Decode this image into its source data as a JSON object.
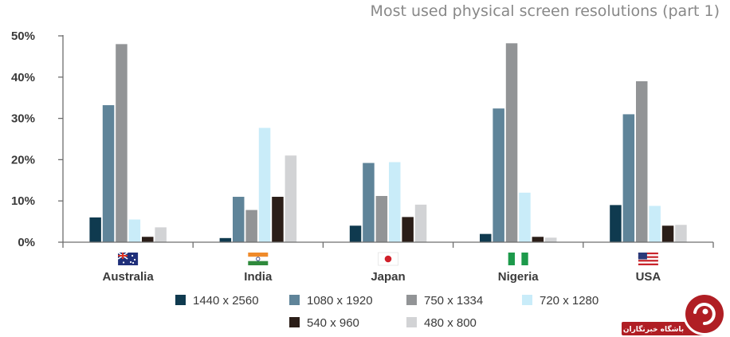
{
  "chart_data": {
    "type": "bar",
    "title": "Most used physical screen resolutions (part 1)",
    "xlabel": "",
    "ylabel": "",
    "ylim": [
      0,
      50
    ],
    "yticks": [
      "0%",
      "10%",
      "20%",
      "30%",
      "40%",
      "50%"
    ],
    "ytick_values": [
      0,
      10,
      20,
      30,
      40,
      50
    ],
    "grid": false,
    "legend_position": "bottom",
    "categories": [
      "Australia",
      "India",
      "Japan",
      "Nigeria",
      "USA"
    ],
    "category_flags": [
      "australia-flag-icon",
      "india-flag-icon",
      "japan-flag-icon",
      "nigeria-flag-icon",
      "usa-flag-icon"
    ],
    "series": [
      {
        "name": "1440 x 2560",
        "color": "#0f3a4f",
        "values": [
          6,
          1,
          4,
          2,
          9
        ]
      },
      {
        "name": "1080 x 1920",
        "color": "#5f8499",
        "values": [
          33.2,
          11,
          19.2,
          32.4,
          31
        ]
      },
      {
        "name": "750 x 1334",
        "color": "#929496",
        "values": [
          48,
          7.8,
          11.2,
          48.2,
          39
        ]
      },
      {
        "name": "720 x 1280",
        "color": "#c9ecf9",
        "values": [
          5.5,
          27.7,
          19.4,
          12,
          8.8
        ]
      },
      {
        "name": "540 x 960",
        "color": "#2b1e18",
        "values": [
          1.3,
          11,
          6.1,
          1.3,
          4
        ]
      },
      {
        "name": "480 x 800",
        "color": "#d2d3d5",
        "values": [
          3.6,
          21,
          9.1,
          1.1,
          4.2
        ]
      }
    ]
  },
  "watermark": {
    "text": "باشگاه خبرنگاران",
    "logo_icon": "yjc-logo-icon",
    "color": "#b01e24"
  }
}
